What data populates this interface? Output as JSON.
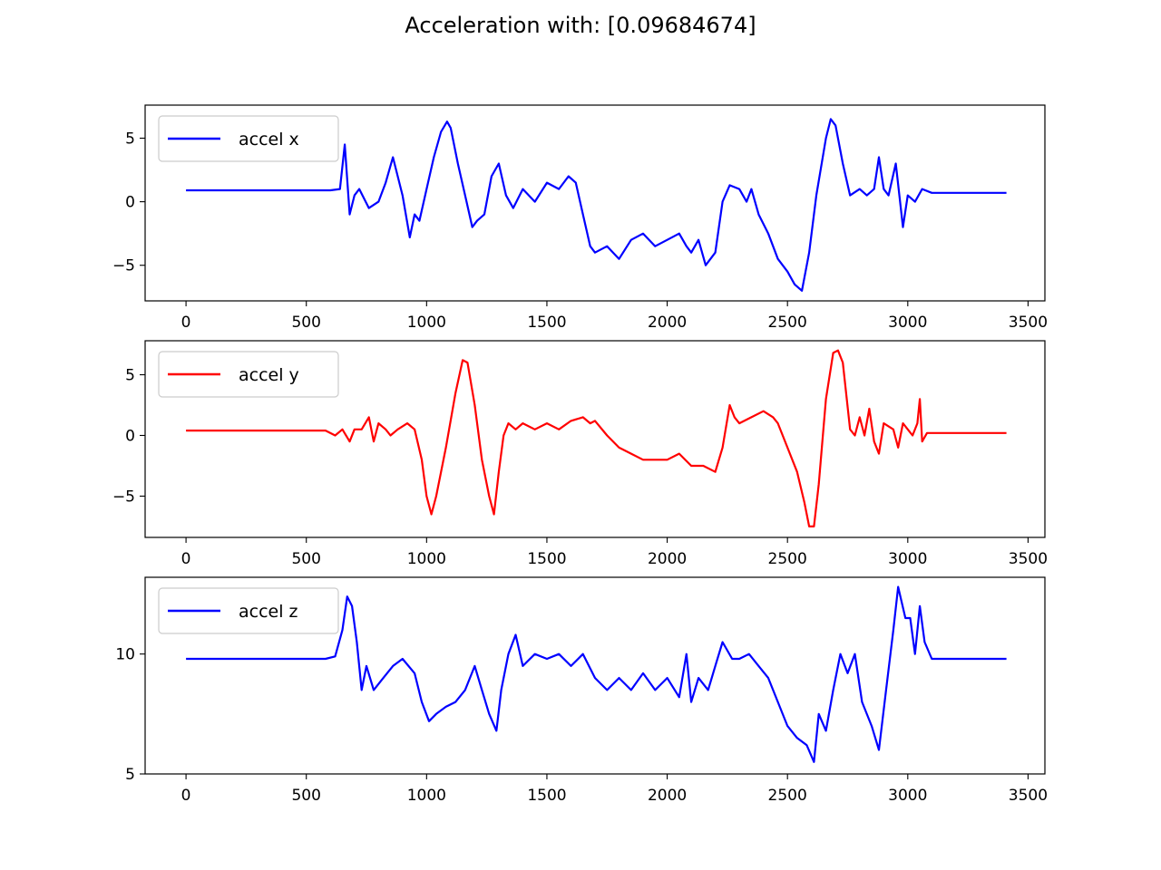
{
  "figure": {
    "title": "Acceleration with: [0.09684674]"
  },
  "chart_data": [
    {
      "type": "line",
      "title": "",
      "xlabel": "",
      "ylabel": "",
      "xlim": [
        -170,
        3570
      ],
      "ylim": [
        -7.8,
        7.6
      ],
      "xticks": [
        0,
        500,
        1000,
        1500,
        2000,
        2500,
        3000,
        3500
      ],
      "yticks": [
        5,
        0,
        -5
      ],
      "ytick_labels": [
        "5",
        "0",
        "−5"
      ],
      "legend_position": "upper-left",
      "series": [
        {
          "name": "accel x",
          "color": "#0000ff",
          "x": [
            0,
            580,
            600,
            640,
            660,
            680,
            700,
            720,
            760,
            800,
            830,
            860,
            900,
            930,
            950,
            970,
            1000,
            1030,
            1060,
            1085,
            1100,
            1130,
            1160,
            1190,
            1210,
            1240,
            1270,
            1300,
            1330,
            1360,
            1400,
            1450,
            1500,
            1550,
            1590,
            1620,
            1650,
            1680,
            1700,
            1750,
            1800,
            1850,
            1900,
            1950,
            2000,
            2050,
            2080,
            2100,
            2130,
            2160,
            2200,
            2230,
            2260,
            2300,
            2330,
            2350,
            2380,
            2420,
            2460,
            2500,
            2530,
            2560,
            2590,
            2620,
            2660,
            2680,
            2700,
            2730,
            2760,
            2800,
            2830,
            2860,
            2880,
            2900,
            2920,
            2950,
            2980,
            3000,
            3030,
            3060,
            3100,
            3200,
            3300,
            3410
          ],
          "values": [
            0.9,
            0.9,
            0.9,
            1.0,
            4.5,
            -1.0,
            0.5,
            1.0,
            -0.5,
            0.0,
            1.5,
            3.5,
            0.5,
            -2.8,
            -1.0,
            -1.5,
            1.0,
            3.5,
            5.5,
            6.3,
            5.8,
            3.0,
            0.5,
            -2.0,
            -1.5,
            -1.0,
            2.0,
            3.0,
            0.5,
            -0.5,
            1.0,
            0.0,
            1.5,
            1.0,
            2.0,
            1.5,
            -1.0,
            -3.5,
            -4.0,
            -3.5,
            -4.5,
            -3.0,
            -2.5,
            -3.5,
            -3.0,
            -2.5,
            -3.5,
            -4.0,
            -3.0,
            -5.0,
            -4.0,
            0.0,
            1.3,
            1.0,
            0.0,
            1.0,
            -1.0,
            -2.5,
            -4.5,
            -5.5,
            -6.5,
            -7.0,
            -4.0,
            0.5,
            5.0,
            6.5,
            6.0,
            3.0,
            0.5,
            1.0,
            0.5,
            1.0,
            3.5,
            1.0,
            0.5,
            3.0,
            -2.0,
            0.5,
            0.0,
            1.0,
            0.7,
            0.7,
            0.7,
            0.7
          ]
        }
      ]
    },
    {
      "type": "line",
      "title": "",
      "xlabel": "",
      "ylabel": "",
      "xlim": [
        -170,
        3570
      ],
      "ylim": [
        -8.4,
        7.8
      ],
      "xticks": [
        0,
        500,
        1000,
        1500,
        2000,
        2500,
        3000,
        3500
      ],
      "yticks": [
        5,
        0,
        -5
      ],
      "ytick_labels": [
        "5",
        "0",
        "−5"
      ],
      "legend_position": "upper-left",
      "series": [
        {
          "name": "accel y",
          "color": "#ff0000",
          "x": [
            0,
            580,
            620,
            650,
            680,
            700,
            730,
            760,
            780,
            800,
            830,
            850,
            880,
            920,
            950,
            980,
            1000,
            1020,
            1040,
            1080,
            1120,
            1150,
            1170,
            1200,
            1230,
            1260,
            1280,
            1300,
            1320,
            1340,
            1370,
            1400,
            1450,
            1500,
            1550,
            1600,
            1650,
            1680,
            1700,
            1750,
            1800,
            1850,
            1900,
            1950,
            2000,
            2050,
            2100,
            2150,
            2200,
            2230,
            2260,
            2280,
            2300,
            2350,
            2400,
            2440,
            2460,
            2500,
            2540,
            2570,
            2590,
            2610,
            2630,
            2660,
            2690,
            2710,
            2730,
            2760,
            2780,
            2800,
            2820,
            2840,
            2860,
            2880,
            2900,
            2940,
            2960,
            2980,
            3000,
            3020,
            3040,
            3050,
            3060,
            3080,
            3200,
            3410
          ],
          "values": [
            0.4,
            0.4,
            0.0,
            0.5,
            -0.5,
            0.5,
            0.5,
            1.5,
            -0.5,
            1.0,
            0.5,
            0.0,
            0.5,
            1.0,
            0.5,
            -2.0,
            -5.0,
            -6.5,
            -5.0,
            -1.0,
            3.5,
            6.2,
            6.0,
            2.5,
            -2.0,
            -5.0,
            -6.5,
            -3.0,
            0.0,
            1.0,
            0.5,
            1.0,
            0.5,
            1.0,
            0.5,
            1.2,
            1.5,
            1.0,
            1.2,
            0.0,
            -1.0,
            -1.5,
            -2.0,
            -2.0,
            -2.0,
            -1.5,
            -2.5,
            -2.5,
            -3.0,
            -1.0,
            2.5,
            1.5,
            1.0,
            1.5,
            2.0,
            1.5,
            1.0,
            -1.0,
            -3.0,
            -5.5,
            -7.5,
            -7.5,
            -4.0,
            3.0,
            6.8,
            7.0,
            6.0,
            0.5,
            0.0,
            1.5,
            0.0,
            2.2,
            -0.5,
            -1.5,
            1.0,
            0.5,
            -1.0,
            1.0,
            0.5,
            0.0,
            1.0,
            3.0,
            -0.5,
            0.2,
            0.2,
            0.2
          ]
        }
      ]
    },
    {
      "type": "line",
      "title": "",
      "xlabel": "",
      "ylabel": "",
      "xlim": [
        -170,
        3570
      ],
      "ylim": [
        5.0,
        13.2
      ],
      "xticks": [
        0,
        500,
        1000,
        1500,
        2000,
        2500,
        3000,
        3500
      ],
      "yticks": [
        10,
        5
      ],
      "ytick_labels": [
        "10",
        "5"
      ],
      "legend_position": "upper-left",
      "series": [
        {
          "name": "accel z",
          "color": "#0000ff",
          "x": [
            0,
            580,
            620,
            650,
            670,
            690,
            710,
            730,
            750,
            780,
            820,
            860,
            900,
            950,
            980,
            1010,
            1040,
            1080,
            1120,
            1160,
            1200,
            1230,
            1260,
            1290,
            1310,
            1340,
            1370,
            1400,
            1450,
            1500,
            1550,
            1600,
            1650,
            1700,
            1750,
            1800,
            1850,
            1900,
            1950,
            2000,
            2050,
            2080,
            2100,
            2130,
            2170,
            2200,
            2230,
            2270,
            2300,
            2340,
            2380,
            2420,
            2460,
            2500,
            2540,
            2580,
            2610,
            2630,
            2660,
            2690,
            2720,
            2750,
            2780,
            2810,
            2850,
            2880,
            2910,
            2940,
            2960,
            2990,
            3010,
            3030,
            3050,
            3070,
            3100,
            3200,
            3410
          ],
          "values": [
            9.8,
            9.8,
            9.9,
            11.0,
            12.4,
            12.0,
            10.5,
            8.5,
            9.5,
            8.5,
            9.0,
            9.5,
            9.8,
            9.2,
            8.0,
            7.2,
            7.5,
            7.8,
            8.0,
            8.5,
            9.5,
            8.5,
            7.5,
            6.8,
            8.5,
            10.0,
            10.8,
            9.5,
            10.0,
            9.8,
            10.0,
            9.5,
            10.0,
            9.0,
            8.5,
            9.0,
            8.5,
            9.2,
            8.5,
            9.0,
            8.2,
            10.0,
            8.0,
            9.0,
            8.5,
            9.5,
            10.5,
            9.8,
            9.8,
            10.0,
            9.5,
            9.0,
            8.0,
            7.0,
            6.5,
            6.2,
            5.5,
            7.5,
            6.8,
            8.5,
            10.0,
            9.2,
            10.0,
            8.0,
            7.0,
            6.0,
            8.5,
            11.0,
            12.8,
            11.5,
            11.5,
            10.0,
            12.0,
            10.5,
            9.8,
            9.8,
            9.8
          ]
        }
      ]
    }
  ]
}
